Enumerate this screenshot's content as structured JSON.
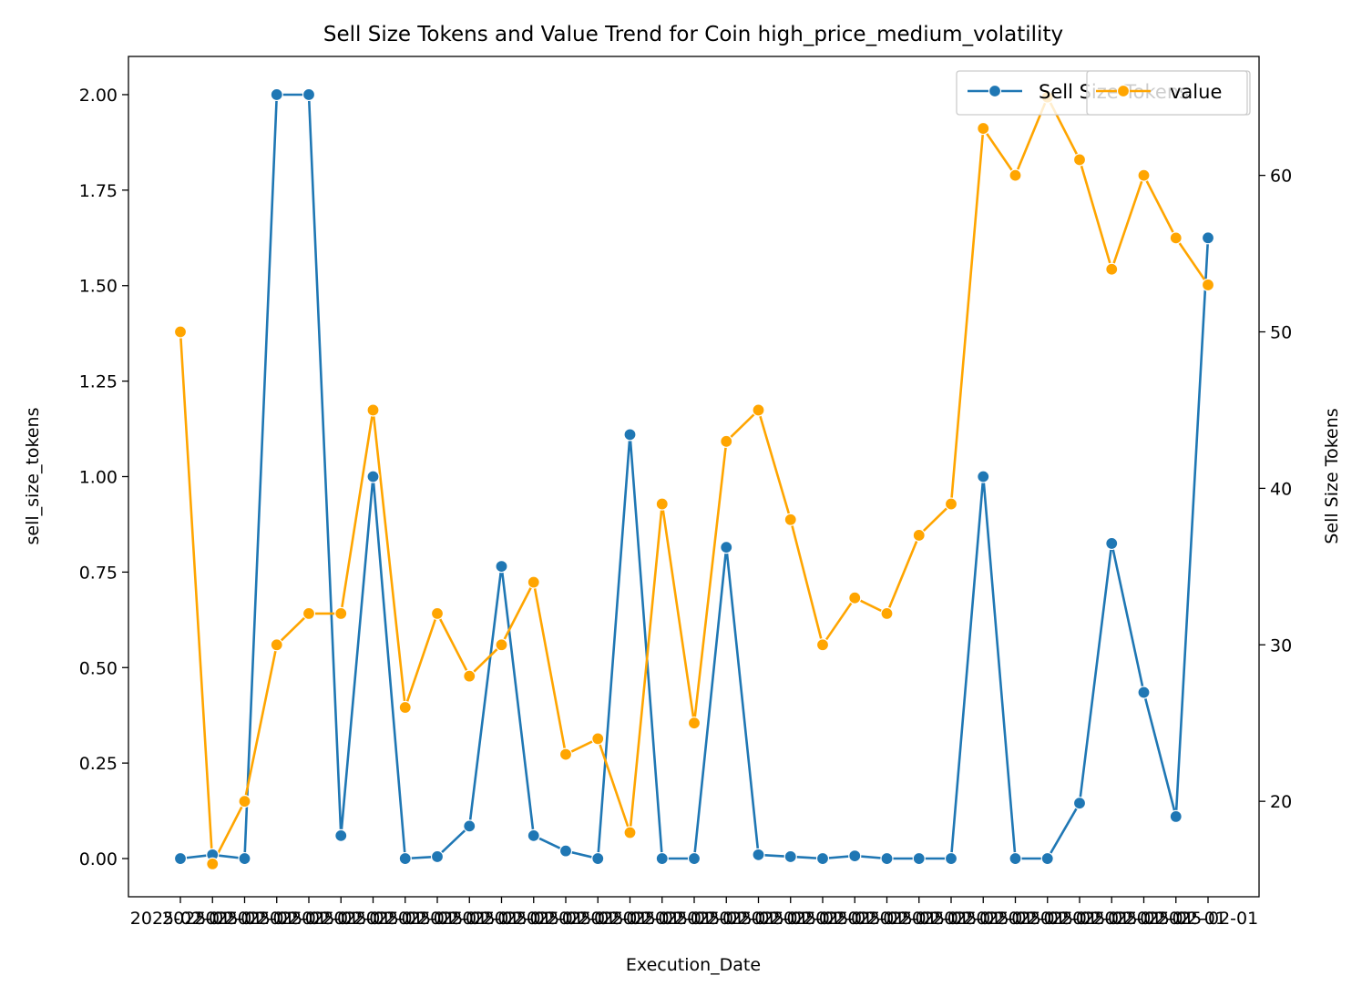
{
  "chart_data": {
    "type": "line",
    "title": "Sell Size Tokens and Value Trend for Coin high_price_medium_volatility",
    "xlabel": "Execution_Date",
    "ylabel_left": "sell_size_tokens",
    "ylabel_right": "Sell Size Tokens",
    "x_tick_text": "2025-02-01",
    "y_left": {
      "lim": [
        -0.1,
        2.1
      ],
      "ticks": [
        "0.00",
        "0.25",
        "0.50",
        "0.75",
        "1.00",
        "1.25",
        "1.50",
        "1.75",
        "2.00"
      ],
      "tick_values": [
        0,
        0.25,
        0.5,
        0.75,
        1.0,
        1.25,
        1.5,
        1.75,
        2.0
      ]
    },
    "y_right": {
      "lim": [
        13.9,
        67.6
      ],
      "ticks": [
        "20",
        "30",
        "40",
        "50",
        "60"
      ],
      "tick_values": [
        20,
        30,
        40,
        50,
        60
      ]
    },
    "legend_placement": "top-right",
    "series": [
      {
        "name": "Sell Size Tokens",
        "axis": "left",
        "color": "#1f77b4",
        "values": [
          0.0,
          0.01,
          0.0,
          2.0,
          2.0,
          0.06,
          1.0,
          0.0,
          0.005,
          0.085,
          0.765,
          0.06,
          0.02,
          0.0,
          1.11,
          0.0,
          0.0,
          0.815,
          0.01,
          0.005,
          0.0,
          0.007,
          0.0,
          0.0,
          0.0,
          1.0,
          0.0,
          0.0,
          0.145,
          0.825,
          0.435,
          0.11,
          1.625
        ]
      },
      {
        "name": "value",
        "axis": "right",
        "color": "#ffa500",
        "values": [
          50,
          16,
          20,
          30,
          32,
          32,
          45,
          26,
          32,
          28,
          30,
          34,
          23,
          24,
          18,
          39,
          25,
          43,
          45,
          38,
          30,
          33,
          32,
          37,
          39,
          63,
          60,
          65,
          61,
          54,
          60,
          56,
          53
        ]
      }
    ]
  }
}
